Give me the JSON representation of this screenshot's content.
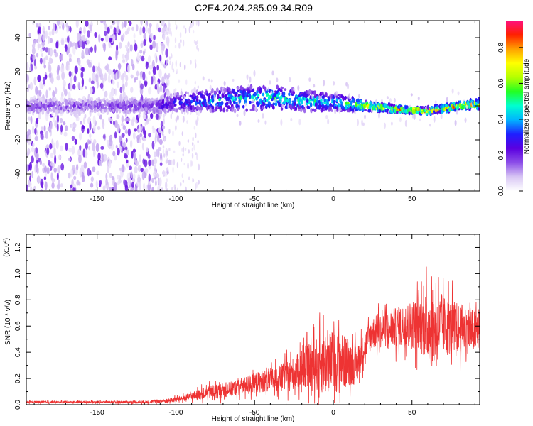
{
  "title": "C2E4.2024.285.09.34.R09",
  "chart_data": [
    {
      "type": "heatmap",
      "xlabel": "Height of straight line (km)",
      "ylabel": "Frequency (Hz)",
      "xlim": [
        -195,
        93
      ],
      "ylim": [
        -50,
        50
      ],
      "xticks": [
        -150,
        -100,
        -50,
        0,
        50
      ],
      "yticks": [
        -40,
        -20,
        0,
        20,
        40
      ],
      "colorbar": {
        "label": "Normalized spectral amplitude",
        "ticks": [
          0.0,
          0.2,
          0.4,
          0.6,
          0.8
        ],
        "tick_labels": [
          "0.0",
          "0.2",
          "0.4",
          "0.6",
          "0.8"
        ],
        "range": [
          0,
          0.95
        ],
        "colors": [
          "#ffffff",
          "#d8c6f4",
          "#8c4ee8",
          "#5b00e0",
          "#1f1fff",
          "#00b4ff",
          "#00ffd0",
          "#22ff22",
          "#b4ff00",
          "#ffff00",
          "#ffa000",
          "#ff2000",
          "#ff1080"
        ]
      },
      "band_profile": {
        "x": [
          -195,
          -150,
          -120,
          -110,
          -100,
          -80,
          -60,
          -40,
          -20,
          0,
          20,
          40,
          60,
          80,
          93
        ],
        "center_hz": [
          0,
          0,
          0,
          0,
          2,
          3,
          4,
          5,
          3,
          2,
          0,
          -2,
          -3,
          0,
          1
        ],
        "halfwidth_hz": [
          4,
          4,
          4,
          4,
          5,
          6,
          7,
          7,
          6,
          5,
          3,
          2,
          2,
          2,
          3
        ],
        "peak_amplitude": [
          0.2,
          0.2,
          0.22,
          0.3,
          0.35,
          0.45,
          0.5,
          0.55,
          0.5,
          0.5,
          0.75,
          0.85,
          0.8,
          0.85,
          0.8
        ]
      },
      "noise_extent": {
        "x_from": -195,
        "x_to": -108,
        "sparse_to": -85
      }
    },
    {
      "type": "line",
      "xlabel": "Height of straight line (km)",
      "ylabel": "SNR (10 * v/v)",
      "scale_label": "(x10",
      "scale_exponent": "4",
      "xlim": [
        -195,
        93
      ],
      "ylim": [
        0,
        1.3
      ],
      "xticks": [
        -150,
        -100,
        -50,
        0,
        50
      ],
      "yticks": [
        0.0,
        0.2,
        0.4,
        0.6,
        0.8,
        1.0,
        1.2
      ],
      "ytick_labels": [
        "0.0",
        "0.2",
        "0.4",
        "0.6",
        "0.8",
        "1.0",
        "1.2"
      ],
      "series": [
        {
          "color": "#ee3333",
          "envelope_x": [
            -195,
            -150,
            -120,
            -105,
            -95,
            -85,
            -75,
            -65,
            -55,
            -45,
            -35,
            -25,
            -15,
            -5,
            5,
            15,
            20,
            25,
            35,
            45,
            55,
            62,
            70,
            80,
            93
          ],
          "envelope_mean": [
            0.02,
            0.02,
            0.02,
            0.03,
            0.05,
            0.08,
            0.1,
            0.12,
            0.15,
            0.18,
            0.2,
            0.24,
            0.3,
            0.32,
            0.33,
            0.3,
            0.45,
            0.55,
            0.58,
            0.6,
            0.62,
            0.58,
            0.6,
            0.58,
            0.56
          ],
          "envelope_spread": [
            0.015,
            0.015,
            0.02,
            0.03,
            0.04,
            0.07,
            0.1,
            0.1,
            0.12,
            0.15,
            0.17,
            0.22,
            0.3,
            0.45,
            0.4,
            0.25,
            0.2,
            0.22,
            0.25,
            0.3,
            0.38,
            0.55,
            0.42,
            0.35,
            0.3
          ]
        }
      ]
    }
  ]
}
